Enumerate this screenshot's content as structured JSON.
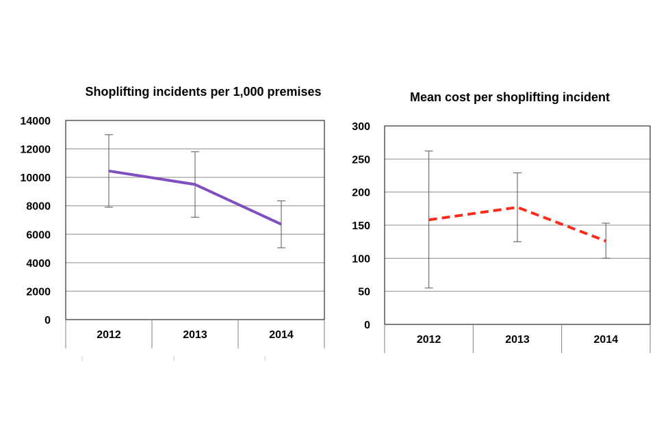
{
  "chart_data": [
    {
      "type": "line",
      "title": "Shoplifting incidents per 1,000 premises",
      "xlabel": "",
      "ylabel": "",
      "categories": [
        "2012",
        "2013",
        "2014"
      ],
      "series": [
        {
          "name": "Shoplifting incidents per 1,000 premises",
          "values": [
            10450,
            9500,
            6700
          ],
          "error_low": [
            7900,
            7200,
            5050
          ],
          "error_high": [
            13000,
            11800,
            8350
          ],
          "color": "#7f4fbf",
          "dash": "solid"
        }
      ],
      "ylim": [
        0,
        14000
      ],
      "yticks": [
        0,
        2000,
        4000,
        6000,
        8000,
        10000,
        12000,
        14000
      ],
      "grid": true,
      "legend": "none"
    },
    {
      "type": "line",
      "title": "Mean cost per shoplifting incident",
      "xlabel": "",
      "ylabel": "",
      "categories": [
        "2012",
        "2013",
        "2014"
      ],
      "series": [
        {
          "name": "Mean cost per shoplifting incident",
          "values": [
            158,
            177,
            126
          ],
          "error_low": [
            55,
            125,
            100
          ],
          "error_high": [
            262,
            229,
            153
          ],
          "color": "#ff2a1a",
          "dash": "dashed"
        }
      ],
      "ylim": [
        0,
        300
      ],
      "yticks": [
        0,
        50,
        100,
        150,
        200,
        250,
        300
      ],
      "grid": true,
      "legend": "none"
    }
  ]
}
